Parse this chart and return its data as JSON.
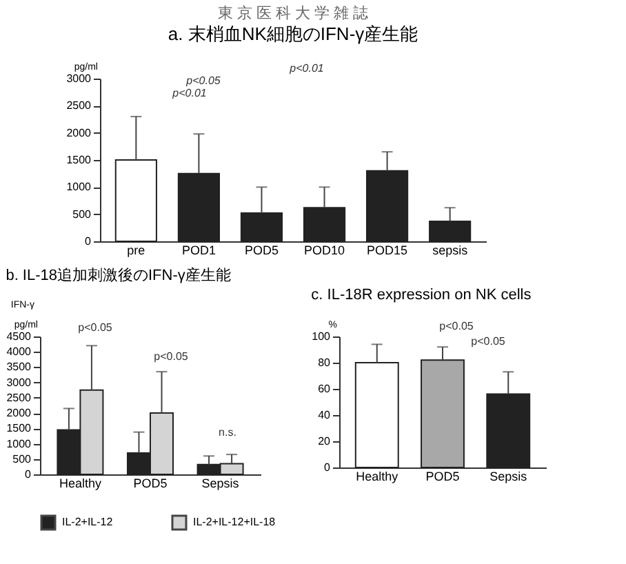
{
  "chart_data": [
    {
      "type": "bar",
      "title": "a. 末梢血NK細胞のIFN-γ産生能",
      "ylabel": "pg/ml",
      "annotations": [
        "東 京 医 科 大 学 雑 誌",
        "p<0.01",
        "p<0.05",
        "p<0.01"
      ],
      "categories": [
        "pre",
        "POD1",
        "POD5",
        "POD10",
        "POD15",
        "sepsis"
      ],
      "values": [
        1500,
        1250,
        520,
        620,
        1300,
        370
      ],
      "errors": [
        [
          1500,
          2300
        ],
        [
          1250,
          1980
        ],
        [
          520,
          1000
        ],
        [
          620,
          1000
        ],
        [
          1300,
          1650
        ],
        [
          370,
          620
        ]
      ],
      "colors": [
        "#ffffff",
        "#222222",
        "#222222",
        "#222222",
        "#222222",
        "#222222"
      ],
      "ylim": [
        0,
        3000
      ],
      "yticks": [
        0,
        500,
        1000,
        1500,
        2000,
        2500,
        3000
      ],
      "grid": false,
      "legend": false
    },
    {
      "type": "bar",
      "title": "b. IL-18追加刺激後のIFN-γ産生能",
      "ylabel": "pg/ml",
      "annotations": [
        "IFN-γ",
        "p<0.05",
        "p<0.05",
        "n.s."
      ],
      "categories": [
        "Healthy",
        "POD5",
        "Sepsis"
      ],
      "series": [
        {
          "name": "IL-2+IL-12",
          "color": "#222222",
          "values": [
            1450,
            700,
            320
          ],
          "errors": [
            [
              1450,
              2150
            ],
            [
              700,
              1380
            ],
            [
              320,
              600
            ]
          ]
        },
        {
          "name": "IL-2+IL-12+IL-18",
          "color": "#d4d4d4",
          "values": [
            2750,
            2000,
            350
          ],
          "errors": [
            [
              2750,
              4200
            ],
            [
              2000,
              3350
            ],
            [
              350,
              650
            ]
          ]
        }
      ],
      "ylim": [
        0,
        4500
      ],
      "yticks": [
        0,
        500,
        1000,
        1500,
        2000,
        2500,
        3000,
        3500,
        4000,
        4500
      ],
      "grid": false,
      "legend": "bottom"
    },
    {
      "type": "bar",
      "title": "c. IL-18R expression on NK cells",
      "ylabel": "%",
      "annotations": [
        "p<0.05",
        "p<0.05"
      ],
      "categories": [
        "Healthy",
        "POD5",
        "Sepsis"
      ],
      "values": [
        80,
        82,
        56
      ],
      "errors": [
        [
          80,
          94
        ],
        [
          82,
          92
        ],
        [
          56,
          73
        ]
      ],
      "colors": [
        "#ffffff",
        "#a8a8a8",
        "#222222"
      ],
      "ylim": [
        0,
        100
      ],
      "yticks": [
        0,
        20,
        40,
        60,
        80,
        100
      ],
      "grid": false,
      "legend": false
    }
  ]
}
